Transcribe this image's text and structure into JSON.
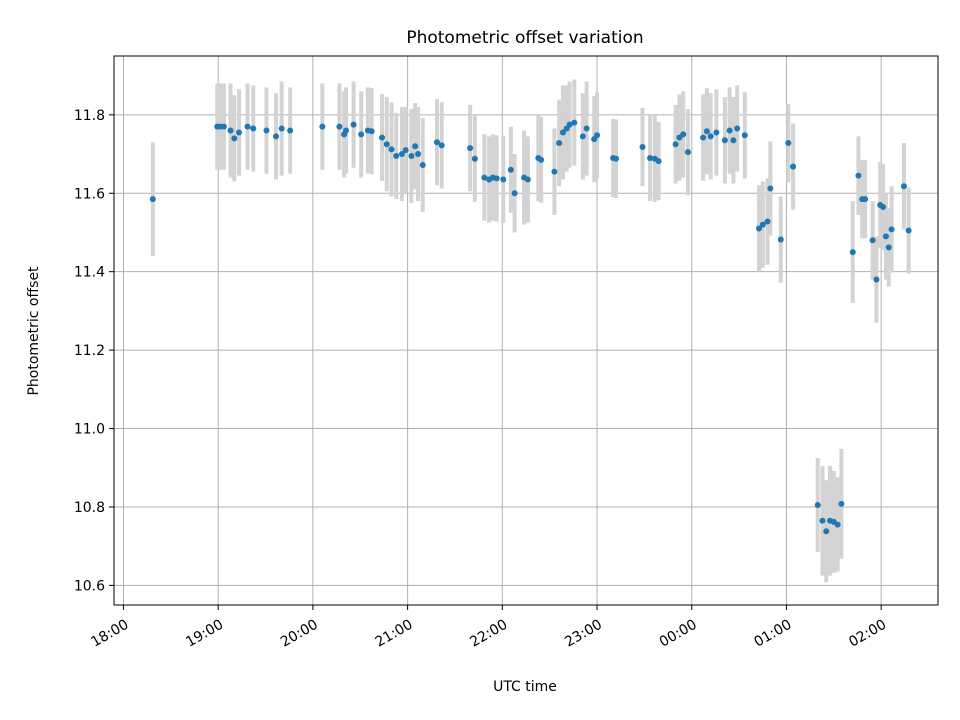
{
  "chart_data": {
    "type": "scatter",
    "title": "Photometric offset variation",
    "xlabel": "UTC time",
    "ylabel": "Photometric offset",
    "x_unit": "hours since 18:00 UTC",
    "xlim": [
      -0.1,
      8.6
    ],
    "ylim": [
      10.55,
      11.95
    ],
    "x_ticks": [
      {
        "v": 0,
        "label": "18:00"
      },
      {
        "v": 1,
        "label": "19:00"
      },
      {
        "v": 2,
        "label": "20:00"
      },
      {
        "v": 3,
        "label": "21:00"
      },
      {
        "v": 4,
        "label": "22:00"
      },
      {
        "v": 5,
        "label": "23:00"
      },
      {
        "v": 6,
        "label": "00:00"
      },
      {
        "v": 7,
        "label": "01:00"
      },
      {
        "v": 8,
        "label": "02:00"
      }
    ],
    "y_ticks": [
      {
        "v": 10.6,
        "label": "10.6"
      },
      {
        "v": 10.8,
        "label": "10.8"
      },
      {
        "v": 11.0,
        "label": "11.0"
      },
      {
        "v": 11.2,
        "label": "11.2"
      },
      {
        "v": 11.4,
        "label": "11.4"
      },
      {
        "v": 11.6,
        "label": "11.6"
      },
      {
        "v": 11.8,
        "label": "11.8"
      }
    ],
    "grid": true,
    "colors": {
      "marker": "#1f77b4",
      "errorbar": "#d3d3d3",
      "grid": "#b0b0b0"
    },
    "points": [
      [
        0.31,
        11.585,
        0.145
      ],
      [
        0.99,
        11.77,
        0.11
      ],
      [
        1.02,
        11.77,
        0.11
      ],
      [
        1.06,
        11.77,
        0.11
      ],
      [
        1.13,
        11.76,
        0.12
      ],
      [
        1.17,
        11.74,
        0.11
      ],
      [
        1.22,
        11.755,
        0.11
      ],
      [
        1.31,
        11.77,
        0.11
      ],
      [
        1.37,
        11.765,
        0.11
      ],
      [
        1.51,
        11.76,
        0.11
      ],
      [
        1.61,
        11.745,
        0.11
      ],
      [
        1.67,
        11.765,
        0.12
      ],
      [
        1.76,
        11.76,
        0.11
      ],
      [
        2.1,
        11.77,
        0.11
      ],
      [
        2.28,
        11.77,
        0.11
      ],
      [
        2.33,
        11.75,
        0.11
      ],
      [
        2.35,
        11.76,
        0.11
      ],
      [
        2.43,
        11.775,
        0.11
      ],
      [
        2.51,
        11.75,
        0.11
      ],
      [
        2.58,
        11.76,
        0.11
      ],
      [
        2.62,
        11.758,
        0.11
      ],
      [
        2.73,
        11.742,
        0.11
      ],
      [
        2.78,
        11.725,
        0.12
      ],
      [
        2.83,
        11.712,
        0.12
      ],
      [
        2.88,
        11.695,
        0.11
      ],
      [
        2.94,
        11.7,
        0.12
      ],
      [
        2.98,
        11.71,
        0.11
      ],
      [
        3.04,
        11.695,
        0.12
      ],
      [
        3.08,
        11.72,
        0.11
      ],
      [
        3.11,
        11.7,
        0.12
      ],
      [
        3.16,
        11.672,
        0.12
      ],
      [
        3.31,
        11.73,
        0.11
      ],
      [
        3.36,
        11.722,
        0.11
      ],
      [
        3.66,
        11.715,
        0.11
      ],
      [
        3.71,
        11.688,
        0.11
      ],
      [
        3.81,
        11.64,
        0.11
      ],
      [
        3.86,
        11.635,
        0.11
      ],
      [
        3.9,
        11.64,
        0.11
      ],
      [
        3.94,
        11.638,
        0.11
      ],
      [
        4.01,
        11.635,
        0.11
      ],
      [
        4.09,
        11.66,
        0.11
      ],
      [
        4.13,
        11.6,
        0.1
      ],
      [
        4.23,
        11.64,
        0.12
      ],
      [
        4.27,
        11.635,
        0.11
      ],
      [
        4.38,
        11.69,
        0.11
      ],
      [
        4.41,
        11.685,
        0.11
      ],
      [
        4.55,
        11.655,
        0.11
      ],
      [
        4.6,
        11.728,
        0.11
      ],
      [
        4.64,
        11.755,
        0.12
      ],
      [
        4.68,
        11.765,
        0.11
      ],
      [
        4.71,
        11.775,
        0.11
      ],
      [
        4.76,
        11.78,
        0.11
      ],
      [
        4.85,
        11.745,
        0.11
      ],
      [
        4.89,
        11.765,
        0.12
      ],
      [
        4.97,
        11.738,
        0.11
      ],
      [
        5.0,
        11.748,
        0.11
      ],
      [
        5.17,
        11.69,
        0.1
      ],
      [
        5.2,
        11.688,
        0.1
      ],
      [
        5.48,
        11.718,
        0.1
      ],
      [
        5.56,
        11.69,
        0.11
      ],
      [
        5.61,
        11.688,
        0.11
      ],
      [
        5.65,
        11.682,
        0.1
      ],
      [
        5.83,
        11.725,
        0.1
      ],
      [
        5.87,
        11.742,
        0.11
      ],
      [
        5.91,
        11.75,
        0.11
      ],
      [
        5.96,
        11.705,
        0.11
      ],
      [
        6.12,
        11.742,
        0.11
      ],
      [
        6.16,
        11.758,
        0.11
      ],
      [
        6.2,
        11.745,
        0.11
      ],
      [
        6.26,
        11.755,
        0.11
      ],
      [
        6.35,
        11.735,
        0.11
      ],
      [
        6.4,
        11.76,
        0.11
      ],
      [
        6.44,
        11.735,
        0.11
      ],
      [
        6.48,
        11.765,
        0.11
      ],
      [
        6.56,
        11.748,
        0.11
      ],
      [
        6.71,
        11.51,
        0.11
      ],
      [
        6.75,
        11.52,
        0.11
      ],
      [
        6.8,
        11.528,
        0.11
      ],
      [
        6.83,
        11.612,
        0.12
      ],
      [
        6.94,
        11.482,
        0.11
      ],
      [
        7.02,
        11.728,
        0.1
      ],
      [
        7.07,
        11.668,
        0.11
      ],
      [
        7.33,
        10.805,
        0.12
      ],
      [
        7.38,
        10.765,
        0.14
      ],
      [
        7.42,
        10.738,
        0.13
      ],
      [
        7.46,
        10.765,
        0.14
      ],
      [
        7.5,
        10.762,
        0.13
      ],
      [
        7.54,
        10.755,
        0.12
      ],
      [
        7.58,
        10.808,
        0.14
      ],
      [
        7.7,
        11.45,
        0.13
      ],
      [
        7.76,
        11.645,
        0.1
      ],
      [
        7.8,
        11.585,
        0.1
      ],
      [
        7.83,
        11.585,
        0.1
      ],
      [
        7.91,
        11.48,
        0.1
      ],
      [
        7.95,
        11.38,
        0.11
      ],
      [
        7.99,
        11.57,
        0.11
      ],
      [
        8.02,
        11.565,
        0.11
      ],
      [
        8.05,
        11.49,
        0.11
      ],
      [
        8.08,
        11.462,
        0.1
      ],
      [
        8.11,
        11.508,
        0.11
      ],
      [
        8.24,
        11.618,
        0.11
      ],
      [
        8.29,
        11.505,
        0.11
      ]
    ]
  }
}
